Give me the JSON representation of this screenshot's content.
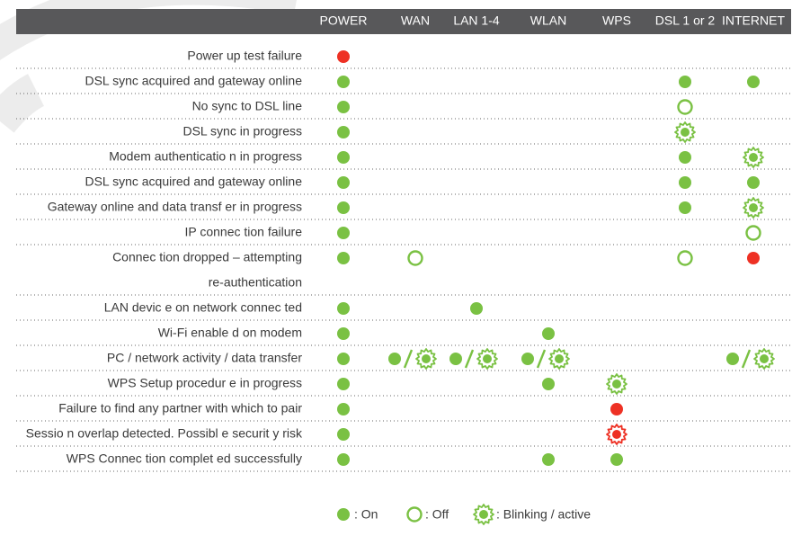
{
  "table": {
    "columns": [
      "POWER",
      "WAN",
      "LAN 1-4",
      "WLAN",
      "WPS",
      "DSL 1 or 2",
      "INTERNET"
    ],
    "rows": [
      {
        "label": [
          "Power up test failure"
        ],
        "cells": [
          "red",
          null,
          null,
          null,
          null,
          null,
          null
        ]
      },
      {
        "label": [
          "DSL sync acquired and gateway online"
        ],
        "cells": [
          "on",
          null,
          null,
          null,
          null,
          "on",
          "on"
        ]
      },
      {
        "label": [
          "No sync to DSL line"
        ],
        "cells": [
          "on",
          null,
          null,
          null,
          null,
          "off",
          null
        ]
      },
      {
        "label": [
          "DSL sync in progress"
        ],
        "cells": [
          "on",
          null,
          null,
          null,
          null,
          "blink",
          null
        ]
      },
      {
        "label": [
          "Modem authenticatio n in progress"
        ],
        "cells": [
          "on",
          null,
          null,
          null,
          null,
          "on",
          "blink"
        ]
      },
      {
        "label": [
          "DSL sync acquired and gateway online"
        ],
        "cells": [
          "on",
          null,
          null,
          null,
          null,
          "on",
          "on"
        ]
      },
      {
        "label": [
          "Gateway online and data transf er in progress"
        ],
        "cells": [
          "on",
          null,
          null,
          null,
          null,
          "on",
          "blink"
        ]
      },
      {
        "label": [
          "IP connec tion failure"
        ],
        "cells": [
          "on",
          null,
          null,
          null,
          null,
          null,
          "off"
        ]
      },
      {
        "label": [
          "Connec tion dropped – attempting",
          "re-authentication"
        ],
        "cells": [
          "on",
          "off",
          null,
          null,
          null,
          "off",
          "red"
        ]
      },
      {
        "label": [
          "LAN devic e on network connec ted"
        ],
        "cells": [
          "on",
          null,
          "on",
          null,
          null,
          null,
          null
        ]
      },
      {
        "label": [
          "Wi-Fi enable d on modem"
        ],
        "cells": [
          "on",
          null,
          null,
          "on",
          null,
          null,
          null
        ]
      },
      {
        "label": [
          "PC / network activity / data transfer"
        ],
        "cells": [
          "on",
          "on-blink",
          "on-blink",
          "on-blink",
          null,
          null,
          "on-blink"
        ]
      },
      {
        "label": [
          "WPS Setup procedur e in progress"
        ],
        "cells": [
          "on",
          null,
          null,
          "on",
          "blink",
          null,
          null
        ]
      },
      {
        "label": [
          "Failure to find any partner with which to pair"
        ],
        "cells": [
          "on",
          null,
          null,
          null,
          "red",
          null,
          null
        ]
      },
      {
        "label": [
          "Sessio n overlap detected. Possibl e securit y risk"
        ],
        "cells": [
          "on",
          null,
          null,
          null,
          "red-blink",
          null,
          null
        ]
      },
      {
        "label": [
          "WPS Connec tion complet ed successfully"
        ],
        "cells": [
          "on",
          null,
          null,
          "on",
          "on",
          null,
          null
        ]
      }
    ]
  },
  "legend": [
    {
      "icon": "on",
      "text": ": On"
    },
    {
      "icon": "off",
      "text": ": Off"
    },
    {
      "icon": "blink",
      "text": ": Blinking / active"
    }
  ]
}
